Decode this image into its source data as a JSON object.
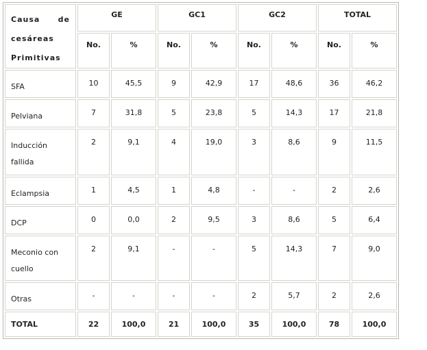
{
  "header": {
    "cause": "Causa de cesáreas Primitivas",
    "groups": [
      "GE",
      "GC1",
      "GC2",
      "TOTAL"
    ],
    "sub": [
      "No.",
      "%"
    ]
  },
  "rows": [
    {
      "cause": "SFA",
      "values": [
        "10",
        "45,5",
        "9",
        "42,9",
        "17",
        "48,6",
        "36",
        "46,2"
      ]
    },
    {
      "cause": "Pelviana",
      "values": [
        "7",
        "31,8",
        "5",
        "23,8",
        "5",
        "14,3",
        "17",
        "21,8"
      ]
    },
    {
      "cause": "Inducción fallida",
      "values": [
        "2",
        "9,1",
        "4",
        "19,0",
        "3",
        "8,6",
        "9",
        "11,5"
      ]
    },
    {
      "cause": "Eclampsia",
      "values": [
        "1",
        "4,5",
        "1",
        "4,8",
        "-",
        "-",
        "2",
        "2,6"
      ]
    },
    {
      "cause": "DCP",
      "values": [
        "0",
        "0,0",
        "2",
        "9,5",
        "3",
        "8,6",
        "5",
        "6,4"
      ]
    },
    {
      "cause": "Meconio con cuello",
      "values": [
        "2",
        "9,1",
        "-",
        "-",
        "5",
        "14,3",
        "7",
        "9,0"
      ]
    },
    {
      "cause": "Otras",
      "values": [
        "-",
        "-",
        "-",
        "-",
        "2",
        "5,7",
        "2",
        "2,6"
      ]
    }
  ],
  "total": {
    "cause": "TOTAL",
    "values": [
      "22",
      "100,0",
      "21",
      "100,0",
      "35",
      "100,0",
      "78",
      "100,0"
    ]
  }
}
